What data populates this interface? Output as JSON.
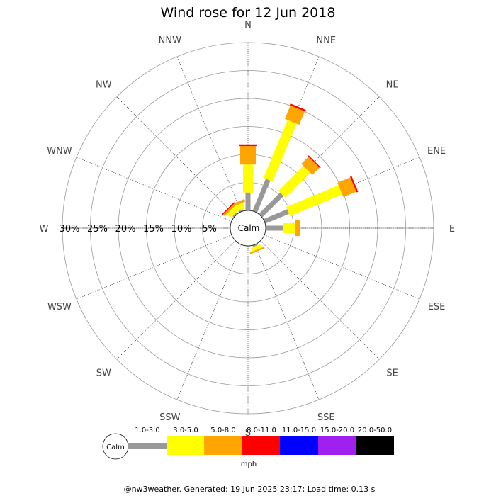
{
  "chart_data": {
    "type": "windrose",
    "title": "Wind rose for 12 Jun 2018",
    "directions": [
      "N",
      "NNE",
      "NE",
      "ENE",
      "E",
      "ESE",
      "SE",
      "SSE",
      "S",
      "SSW",
      "SW",
      "WSW",
      "W",
      "WNW",
      "NW",
      "NNW"
    ],
    "radial_labels": [
      "30%",
      "25%",
      "20%",
      "15%",
      "10%",
      "5%"
    ],
    "radial_max": 30,
    "calm_label": "Calm",
    "speed_bins": [
      {
        "label": "1.0-3.0",
        "color": "#999999"
      },
      {
        "label": "3.0-5.0",
        "color": "#ffff00"
      },
      {
        "label": "5.0-8.0",
        "color": "#ffa500"
      },
      {
        "label": "8.0-11.0",
        "color": "#ff0000"
      },
      {
        "label": "11.0-15.0",
        "color": "#0000ff"
      },
      {
        "label": "15.0-20.0",
        "color": "#a020f0"
      },
      {
        "label": "20.0-50.0",
        "color": "#000000"
      }
    ],
    "units": "mph",
    "series": [
      {
        "direction": "N",
        "values": [
          3.2,
          5.0,
          3.3,
          0.3,
          0,
          0,
          0
        ]
      },
      {
        "direction": "NNE",
        "values": [
          6.2,
          11.2,
          2.6,
          0.3,
          0,
          0,
          0
        ]
      },
      {
        "direction": "NE",
        "values": [
          5.4,
          6.3,
          1.8,
          0.2,
          0,
          0,
          0
        ]
      },
      {
        "direction": "ENE",
        "values": [
          4.6,
          10.1,
          2.5,
          0.3,
          0,
          0,
          0
        ]
      },
      {
        "direction": "E",
        "values": [
          3.1,
          2.2,
          0.8,
          0,
          0,
          0,
          0
        ]
      },
      {
        "direction": "SSE",
        "values": [
          0.3,
          0.7,
          0.3,
          0,
          0,
          0,
          0
        ]
      },
      {
        "direction": "NNW",
        "values": [
          0.3,
          1.1,
          0.5,
          0,
          0,
          0,
          0
        ]
      },
      {
        "direction": "NW",
        "values": [
          0.3,
          1.0,
          0.4,
          0.2,
          0,
          0,
          0
        ]
      }
    ]
  },
  "footer": "@nw3weather. Generated: 19 Jun 2025 23:17; Load time: 0.13 s"
}
